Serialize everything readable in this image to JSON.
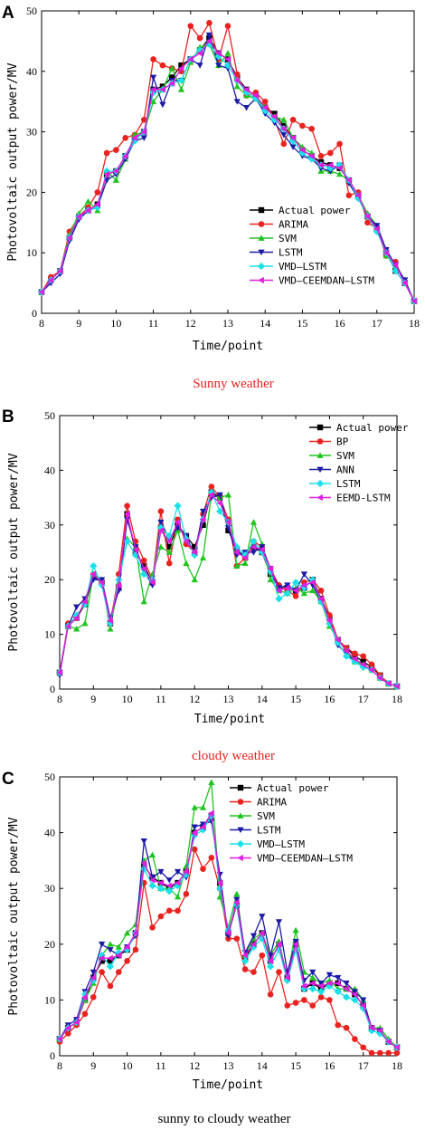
{
  "chart_data": [
    {
      "panel": "A",
      "type": "line",
      "caption": "Sunny weather",
      "caption_color": "#e8231f",
      "xlabel": "Time/point",
      "ylabel": "Photovoltaic output power/MV",
      "xlim": [
        8,
        18
      ],
      "ylim": [
        0,
        50
      ],
      "xticks": [
        8,
        9,
        10,
        11,
        12,
        13,
        14,
        15,
        16,
        17,
        18
      ],
      "yticks": [
        0,
        10,
        20,
        30,
        40,
        50
      ],
      "legend_position": "lower-right",
      "x": [
        8,
        8.25,
        8.5,
        8.75,
        9,
        9.25,
        9.5,
        9.75,
        10,
        10.25,
        10.5,
        10.75,
        11,
        11.25,
        11.5,
        11.75,
        12,
        12.25,
        12.5,
        12.75,
        13,
        13.25,
        13.5,
        13.75,
        14,
        14.25,
        14.5,
        14.75,
        15,
        15.25,
        15.5,
        15.75,
        16,
        16.25,
        16.5,
        16.75,
        17,
        17.25,
        17.5,
        17.75,
        18
      ],
      "series": [
        {
          "name": "Actual power",
          "color": "#000000",
          "marker": "square",
          "values": [
            3.5,
            5.5,
            7,
            12.5,
            16,
            17,
            18,
            23,
            23.5,
            26,
            29,
            30,
            37,
            37.5,
            39,
            41,
            42,
            43.5,
            45.5,
            43,
            42,
            39,
            37,
            36,
            34,
            33,
            31,
            29,
            27,
            26,
            25,
            24.5,
            24,
            22,
            19.5,
            16,
            14,
            10,
            7,
            5,
            2
          ]
        },
        {
          "name": "ARIMA",
          "color": "#e8231f",
          "marker": "circle",
          "values": [
            3.5,
            6,
            7,
            13.5,
            16,
            17.5,
            20,
            26.5,
            27,
            29,
            29.5,
            32,
            42,
            41,
            40.5,
            40,
            47.5,
            45.5,
            48,
            42,
            47.5,
            39.5,
            36,
            36.5,
            35,
            32,
            28,
            32,
            31,
            30.5,
            26,
            26.5,
            28,
            19.5,
            20,
            15,
            14,
            9.5,
            8.5,
            5,
            2
          ]
        },
        {
          "name": "SVM",
          "color": "#1fc41f",
          "marker": "triangle-up",
          "values": [
            3.5,
            5.5,
            7,
            13,
            16.5,
            18.5,
            17,
            23.5,
            22,
            25.5,
            29.5,
            30,
            35,
            37,
            40.5,
            37,
            41.5,
            44,
            44.5,
            41,
            43,
            37.5,
            36,
            35.5,
            34,
            32.5,
            32,
            29,
            27.5,
            26.5,
            23.5,
            23.5,
            23,
            22,
            19.5,
            16.5,
            14.5,
            9.5,
            8,
            5.5,
            2
          ]
        },
        {
          "name": "LSTM",
          "color": "#1a1aa6",
          "marker": "triangle-down",
          "values": [
            3.5,
            5,
            6.5,
            12,
            15.5,
            17,
            17.5,
            22,
            23,
            25.5,
            28.5,
            29,
            39,
            34.5,
            38.5,
            38.5,
            42,
            41,
            46,
            41,
            40.5,
            35,
            34,
            35.5,
            33,
            31.5,
            29.5,
            27.5,
            26,
            25.5,
            24,
            23.5,
            24.5,
            21.5,
            19,
            16,
            14.5,
            10.5,
            8,
            5.5,
            2
          ]
        },
        {
          "name": "VMD—LSTM",
          "color": "#1ae0e8",
          "marker": "diamond",
          "values": [
            3.5,
            5.5,
            7,
            12.5,
            16,
            17,
            17.5,
            23.5,
            23.5,
            26,
            28.5,
            30,
            36.5,
            37,
            38,
            38.5,
            42,
            43.5,
            44.5,
            42.5,
            41,
            38.5,
            36.5,
            35.5,
            33.5,
            32,
            30.5,
            28.5,
            26.5,
            25.5,
            24.5,
            24,
            24.5,
            22,
            19,
            16,
            13.5,
            10,
            7,
            5,
            2
          ]
        },
        {
          "name": "VMD—CEEMDAN—LSTM",
          "color": "#e01ee0",
          "marker": "triangle-left",
          "values": [
            3.5,
            5.5,
            7,
            12.5,
            16,
            17,
            18,
            23,
            23.5,
            26,
            29,
            30,
            37,
            37,
            38,
            40.5,
            42,
            43,
            45,
            43,
            42,
            38.5,
            37,
            36,
            34,
            32.5,
            30.5,
            29,
            27,
            26,
            24.5,
            24.5,
            24,
            22,
            19.5,
            16,
            14,
            10,
            8,
            5,
            2
          ]
        }
      ]
    },
    {
      "panel": "B",
      "type": "line",
      "caption": "cloudy weather",
      "caption_color": "#e8231f",
      "xlabel": "Time/point",
      "ylabel": "Photovoltaic output power/MV",
      "xlim": [
        8,
        18
      ],
      "ylim": [
        0,
        50
      ],
      "xticks": [
        8,
        9,
        10,
        11,
        12,
        13,
        14,
        15,
        16,
        17,
        18
      ],
      "yticks": [
        0,
        10,
        20,
        30,
        40,
        50
      ],
      "legend_position": "top-right",
      "x": [
        8,
        8.25,
        8.5,
        8.75,
        9,
        9.25,
        9.5,
        9.75,
        10,
        10.25,
        10.5,
        10.75,
        11,
        11.25,
        11.5,
        11.75,
        12,
        12.25,
        12.5,
        12.75,
        13,
        13.25,
        13.5,
        13.75,
        14,
        14.25,
        14.5,
        14.75,
        15,
        15.25,
        15.5,
        15.75,
        16,
        16.25,
        16.5,
        16.75,
        17,
        17.25,
        17.5,
        17.75,
        18
      ],
      "series": [
        {
          "name": "Actual power",
          "color": "#000000",
          "marker": "square",
          "values": [
            3,
            11.5,
            13,
            15.5,
            20.5,
            19.5,
            12,
            18.5,
            32,
            25,
            22.5,
            19.5,
            29.5,
            26,
            30,
            28,
            26,
            30,
            36,
            35,
            29,
            25.5,
            24,
            26,
            25,
            21,
            18.5,
            18.5,
            18,
            18.5,
            20,
            16.5,
            13,
            9,
            7.5,
            6,
            5,
            4,
            2.5,
            1,
            0.5
          ]
        },
        {
          "name": "BP",
          "color": "#e8231f",
          "marker": "circle",
          "values": [
            3,
            12,
            13,
            16,
            21,
            19.5,
            12,
            21,
            33.5,
            27,
            23.5,
            20,
            32.5,
            23,
            31,
            26.5,
            25,
            32,
            37,
            35,
            31,
            22.5,
            24,
            27,
            26,
            22,
            19,
            18,
            17,
            19.5,
            20,
            18,
            13.5,
            9,
            7.5,
            6.5,
            6,
            4.5,
            2.5,
            1,
            0.5
          ]
        },
        {
          "name": "SVM",
          "color": "#1fc41f",
          "marker": "triangle-up",
          "values": [
            3,
            11.5,
            11,
            12,
            21,
            20,
            11,
            19.5,
            27.5,
            26,
            16,
            21,
            26,
            25,
            29,
            23,
            20,
            24,
            35.5,
            35,
            35.5,
            22.5,
            23,
            30.5,
            26.5,
            20,
            18,
            17.5,
            18.5,
            17.5,
            18,
            16,
            11.5,
            9,
            7,
            5,
            4.5,
            3.5,
            2,
            1,
            0.5
          ]
        },
        {
          "name": "ANN",
          "color": "#1a1aa6",
          "marker": "triangle-down",
          "values": [
            2.5,
            11.5,
            15,
            16.5,
            20,
            20,
            13,
            18,
            31,
            26,
            21.5,
            19,
            30.5,
            27.5,
            29.5,
            28,
            24.5,
            32.5,
            35,
            35.5,
            29.5,
            24.5,
            25,
            25,
            26,
            22,
            18.5,
            19,
            18,
            21,
            19,
            16,
            12.5,
            8,
            6.5,
            5,
            4,
            3.5,
            2,
            1,
            0.5
          ]
        },
        {
          "name": "LSTM",
          "color": "#1ae0e8",
          "marker": "diamond",
          "values": [
            3,
            11.5,
            13.5,
            15.5,
            22.5,
            19,
            12,
            20,
            27,
            24.5,
            21,
            20,
            29.5,
            28,
            33.5,
            27.5,
            24.5,
            31,
            36,
            32.5,
            30.5,
            26,
            24.5,
            27,
            25,
            21.5,
            16.5,
            17.5,
            19.5,
            18.5,
            20,
            16,
            12,
            8.5,
            6,
            5,
            4,
            3.5,
            2,
            1,
            0.5
          ]
        },
        {
          "name": "EEMD-LSTM",
          "color": "#e01ee0",
          "marker": "triangle-left",
          "values": [
            3,
            11.5,
            13,
            16,
            21,
            19.5,
            12.5,
            19,
            32,
            25.5,
            22,
            19.5,
            29,
            27,
            30.5,
            27,
            25,
            31,
            35.5,
            34,
            30.5,
            25,
            24,
            26,
            25.5,
            22,
            18,
            18.5,
            18,
            19,
            19.5,
            16.5,
            12.5,
            9,
            7,
            5.5,
            4.5,
            3.5,
            2,
            1,
            0.5
          ]
        }
      ]
    },
    {
      "panel": "C",
      "type": "line",
      "caption": "sunny to cloudy weather",
      "caption_color": "#000000",
      "xlabel": "Time/point",
      "ylabel": "Photovoltaic output power/MV",
      "xlim": [
        8,
        18
      ],
      "ylim": [
        0,
        50
      ],
      "xticks": [
        8,
        9,
        10,
        11,
        12,
        13,
        14,
        15,
        16,
        17,
        18
      ],
      "yticks": [
        0,
        10,
        20,
        30,
        40,
        50
      ],
      "legend_position": "top-right",
      "x": [
        8,
        8.25,
        8.5,
        8.75,
        9,
        9.25,
        9.5,
        9.75,
        10,
        10.25,
        10.5,
        10.75,
        11,
        11.25,
        11.5,
        11.75,
        12,
        12.25,
        12.5,
        12.75,
        13,
        13.25,
        13.5,
        13.75,
        14,
        14.25,
        14.5,
        14.75,
        15,
        15.25,
        15.5,
        15.75,
        16,
        16.25,
        16.5,
        16.75,
        17,
        17.25,
        17.5,
        17.75,
        18
      ],
      "series": [
        {
          "name": "Actual power",
          "color": "#000000",
          "marker": "square",
          "values": [
            3,
            5,
            6,
            10,
            14,
            17,
            17,
            18,
            19,
            22,
            34,
            32,
            31,
            30,
            31,
            33,
            40,
            41,
            43,
            31,
            22,
            27,
            17.5,
            20,
            22,
            17,
            20,
            14,
            20,
            12,
            13,
            12,
            13,
            13,
            12,
            11,
            9,
            5,
            4.5,
            2.5,
            1.5
          ]
        },
        {
          "name": "ARIMA",
          "color": "#e8231f",
          "marker": "circle",
          "values": [
            2.5,
            4,
            5.5,
            7.5,
            10.5,
            15,
            12.5,
            15,
            17,
            19,
            31,
            23,
            25,
            26,
            26,
            29,
            37,
            33.5,
            35.5,
            30,
            21,
            21,
            15.5,
            15,
            18,
            11,
            15,
            9,
            9.5,
            10,
            9,
            10.5,
            10,
            5.5,
            5,
            3,
            1.5,
            0.5,
            0.5,
            0.5,
            0.5
          ]
        },
        {
          "name": "SVM",
          "color": "#1fc41f",
          "marker": "triangle-up",
          "values": [
            3,
            5,
            6,
            10,
            13,
            18,
            20,
            19.5,
            22,
            23.5,
            35,
            36,
            30,
            30,
            28.5,
            34,
            44.5,
            44.5,
            49,
            28.5,
            23,
            29,
            18,
            21,
            22,
            18,
            20.5,
            14,
            22.5,
            15,
            14,
            13,
            13.5,
            12,
            12,
            12,
            10,
            5,
            5,
            3,
            1.5
          ]
        },
        {
          "name": "LSTM",
          "color": "#1a1aa6",
          "marker": "triangle-down",
          "values": [
            3,
            5.5,
            6.5,
            11.5,
            15,
            20,
            19,
            18,
            19.5,
            21.5,
            38.5,
            32,
            33,
            31.5,
            33,
            32,
            41,
            41.5,
            42,
            32.5,
            21.5,
            28,
            18.5,
            21.5,
            25,
            18,
            24,
            15,
            20.5,
            13.5,
            15,
            13,
            14.5,
            14,
            13,
            11.5,
            10,
            5,
            4.5,
            2.5,
            1.5
          ]
        },
        {
          "name": "VMD—LSTM",
          "color": "#1ae0e8",
          "marker": "diamond",
          "values": [
            3,
            5,
            6,
            11,
            13.5,
            18,
            16,
            18.5,
            19,
            22,
            33.5,
            30.5,
            30,
            29.5,
            30.5,
            32.5,
            39.5,
            40.5,
            43,
            30,
            22.5,
            27,
            17,
            19.5,
            21,
            16,
            19,
            13.5,
            19,
            12,
            12,
            11.5,
            12.5,
            11.5,
            10.5,
            10,
            8.5,
            4.5,
            4,
            2.5,
            1.5
          ]
        },
        {
          "name": "VMD—CEEMDAN—LSTM",
          "color": "#e01ee0",
          "marker": "triangle-left",
          "values": [
            3,
            5,
            6,
            10.5,
            14,
            17.5,
            17.5,
            18,
            19.5,
            22,
            34.5,
            31.5,
            31,
            30.5,
            31,
            33,
            40,
            41,
            43.5,
            31,
            22,
            27.5,
            18,
            20,
            22,
            17,
            20,
            14,
            20,
            12.5,
            13,
            12.5,
            13,
            13,
            12,
            11,
            9,
            5,
            4.5,
            2.5,
            1.5
          ]
        }
      ]
    }
  ]
}
